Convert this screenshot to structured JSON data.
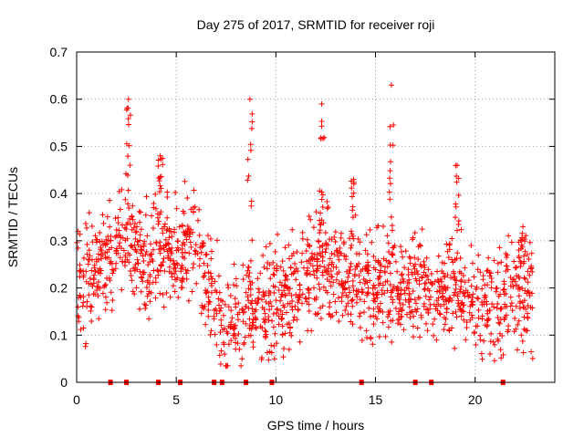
{
  "chart_data": {
    "type": "scatter",
    "title": "Day 275 of 2017, SRMTID for receiver roji",
    "xlabel": "GPS time / hours",
    "ylabel": "SRMTID / TECUs",
    "xlim": [
      0,
      24.0
    ],
    "ylim": [
      0,
      0.7
    ],
    "xticks": [
      0,
      5,
      10,
      15,
      20
    ],
    "yticks": [
      0,
      0.1,
      0.2,
      0.3,
      0.4,
      0.5,
      0.6,
      0.7
    ],
    "grid": true,
    "marker": "+",
    "color": "#ff0000",
    "envelope": [
      [
        0.0,
        0.19
      ],
      [
        0.5,
        0.22
      ],
      [
        1.0,
        0.24
      ],
      [
        1.5,
        0.26
      ],
      [
        2.0,
        0.3
      ],
      [
        2.5,
        0.32
      ],
      [
        3.0,
        0.27
      ],
      [
        3.5,
        0.26
      ],
      [
        4.0,
        0.27
      ],
      [
        4.5,
        0.29
      ],
      [
        5.0,
        0.27
      ],
      [
        5.5,
        0.3
      ],
      [
        6.0,
        0.29
      ],
      [
        6.5,
        0.21
      ],
      [
        7.0,
        0.17
      ],
      [
        7.5,
        0.12
      ],
      [
        8.0,
        0.12
      ],
      [
        8.5,
        0.16
      ],
      [
        9.0,
        0.16
      ],
      [
        9.5,
        0.15
      ],
      [
        10.0,
        0.18
      ],
      [
        10.5,
        0.18
      ],
      [
        11.0,
        0.19
      ],
      [
        11.5,
        0.22
      ],
      [
        12.0,
        0.25
      ],
      [
        12.5,
        0.26
      ],
      [
        13.0,
        0.23
      ],
      [
        13.5,
        0.22
      ],
      [
        14.0,
        0.22
      ],
      [
        14.5,
        0.22
      ],
      [
        15.0,
        0.2
      ],
      [
        15.5,
        0.22
      ],
      [
        16.0,
        0.2
      ],
      [
        16.5,
        0.19
      ],
      [
        17.0,
        0.2
      ],
      [
        17.5,
        0.21
      ],
      [
        18.0,
        0.2
      ],
      [
        18.5,
        0.19
      ],
      [
        19.0,
        0.2
      ],
      [
        19.5,
        0.19
      ],
      [
        20.0,
        0.17
      ],
      [
        20.5,
        0.16
      ],
      [
        21.0,
        0.16
      ],
      [
        21.5,
        0.18
      ],
      [
        22.0,
        0.19
      ],
      [
        22.5,
        0.18
      ],
      [
        22.9,
        0.17
      ]
    ],
    "peaks": [
      {
        "x": 2.6,
        "y": 0.6
      },
      {
        "x": 4.2,
        "y": 0.48
      },
      {
        "x": 8.7,
        "y": 0.6
      },
      {
        "x": 12.3,
        "y": 0.59
      },
      {
        "x": 13.9,
        "y": 0.43
      },
      {
        "x": 15.8,
        "y": 0.63
      },
      {
        "x": 19.1,
        "y": 0.46
      },
      {
        "x": 22.4,
        "y": 0.33
      }
    ],
    "gap_markers_x": [
      1.7,
      2.5,
      4.1,
      5.2,
      6.9,
      7.3,
      8.5,
      9.8,
      14.3,
      17.0,
      17.8,
      21.4
    ]
  }
}
